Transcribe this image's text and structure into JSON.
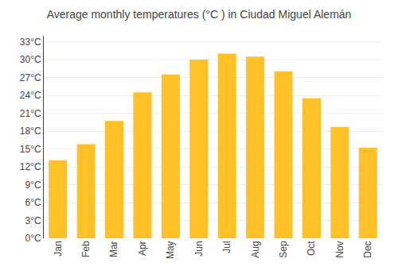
{
  "chart_data": {
    "type": "bar",
    "title": "Average monthly temperatures (°C ) in Ciudad Miguel Alemán",
    "categories": [
      "Jan",
      "Feb",
      "Mar",
      "Apr",
      "May",
      "Jun",
      "Jul",
      "Aug",
      "Sep",
      "Oct",
      "Nov",
      "Dec"
    ],
    "values": [
      13.1,
      15.8,
      19.7,
      24.5,
      27.5,
      30.0,
      31.0,
      30.5,
      28.0,
      23.5,
      18.7,
      15.2
    ],
    "color": "#FFC125",
    "ylim": [
      0,
      34
    ],
    "yticks": [
      {
        "value": 0,
        "label": "0°C"
      },
      {
        "value": 3,
        "label": "3°C"
      },
      {
        "value": 6,
        "label": "6°C"
      },
      {
        "value": 9,
        "label": "9°C"
      },
      {
        "value": 12,
        "label": "12°C"
      },
      {
        "value": 15,
        "label": "15°C"
      },
      {
        "value": 18,
        "label": "18°C"
      },
      {
        "value": 21,
        "label": "21°C"
      },
      {
        "value": 24,
        "label": "24°C"
      },
      {
        "value": 27,
        "label": "27°C"
      },
      {
        "value": 30,
        "label": "30°C"
      },
      {
        "value": 33,
        "label": "33°C"
      }
    ],
    "grid": true
  }
}
